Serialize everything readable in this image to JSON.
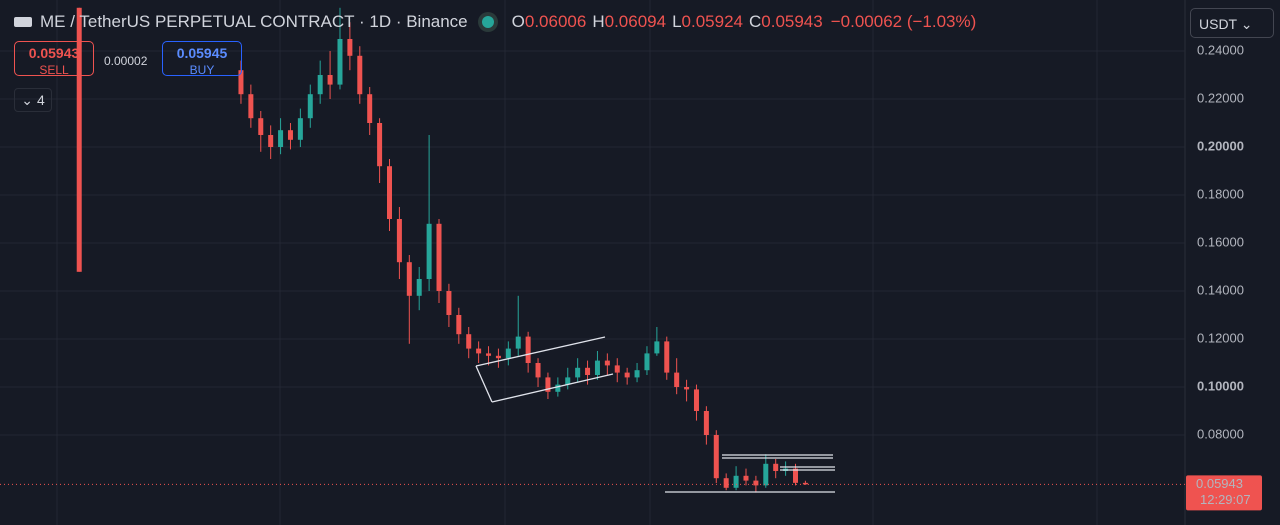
{
  "header": {
    "symbol": "ME / TetherUS PERPETUAL CONTRACT · 1D · Binance",
    "ohlc": [
      {
        "label": "O",
        "value": 0.06006
      },
      {
        "label": "H",
        "value": 0.06094
      },
      {
        "label": "L",
        "value": 0.05924
      },
      {
        "label": "C",
        "value": 0.05943
      }
    ],
    "change": "−0.00062 (−1.03%)",
    "sell": {
      "price": 0.05943,
      "label": "SELL"
    },
    "spread": 2e-05,
    "buy": {
      "price": 0.05945,
      "label": "BUY"
    },
    "indicators": 4,
    "currency": "USDT"
  },
  "chart_data": {
    "type": "candlestick",
    "x": [
      0,
      49,
      52,
      55,
      58,
      61,
      64,
      67,
      70,
      73,
      76,
      79,
      82,
      85,
      88,
      91,
      94,
      97,
      100,
      103,
      106,
      109,
      112,
      115,
      118,
      121,
      124,
      127,
      130,
      133,
      136,
      139,
      142,
      145,
      148,
      151,
      154,
      157,
      160,
      163,
      166,
      169,
      172,
      175,
      178,
      181,
      184,
      187,
      190,
      193,
      196,
      199,
      202,
      205,
      208,
      211,
      214,
      217,
      220
    ],
    "open": [
      0.258,
      0.232,
      0.222,
      0.212,
      0.205,
      0.2,
      0.207,
      0.203,
      0.212,
      0.222,
      0.23,
      0.226,
      0.245,
      0.238,
      0.222,
      0.21,
      0.192,
      0.17,
      0.152,
      0.138,
      0.145,
      0.168,
      0.14,
      0.13,
      0.122,
      0.116,
      0.114,
      0.113,
      0.112,
      0.116,
      0.121,
      0.11,
      0.104,
      0.098,
      0.101,
      0.104,
      0.108,
      0.105,
      0.111,
      0.109,
      0.106,
      0.104,
      0.107,
      0.114,
      0.119,
      0.106,
      0.1,
      0.099,
      0.09,
      0.08,
      0.062,
      0.058,
      0.063,
      0.061,
      0.059,
      0.068,
      0.065,
      0.066,
      0.06006
    ],
    "high": [
      0.258,
      0.236,
      0.226,
      0.215,
      0.209,
      0.212,
      0.21,
      0.216,
      0.226,
      0.236,
      0.24,
      0.258,
      0.252,
      0.242,
      0.225,
      0.212,
      0.195,
      0.175,
      0.155,
      0.15,
      0.205,
      0.17,
      0.143,
      0.133,
      0.125,
      0.119,
      0.117,
      0.116,
      0.119,
      0.138,
      0.123,
      0.112,
      0.106,
      0.104,
      0.108,
      0.112,
      0.111,
      0.115,
      0.114,
      0.112,
      0.108,
      0.11,
      0.117,
      0.125,
      0.121,
      0.112,
      0.103,
      0.101,
      0.092,
      0.082,
      0.064,
      0.067,
      0.066,
      0.063,
      0.072,
      0.07,
      0.069,
      0.068,
      0.06094
    ],
    "low": [
      0.148,
      0.218,
      0.208,
      0.198,
      0.195,
      0.197,
      0.199,
      0.2,
      0.208,
      0.218,
      0.22,
      0.224,
      0.232,
      0.218,
      0.205,
      0.185,
      0.165,
      0.145,
      0.118,
      0.132,
      0.14,
      0.135,
      0.125,
      0.118,
      0.112,
      0.11,
      0.109,
      0.108,
      0.109,
      0.113,
      0.106,
      0.1,
      0.095,
      0.096,
      0.099,
      0.102,
      0.101,
      0.103,
      0.105,
      0.102,
      0.101,
      0.102,
      0.105,
      0.113,
      0.103,
      0.097,
      0.094,
      0.086,
      0.076,
      0.06,
      0.057,
      0.057,
      0.059,
      0.056,
      0.058,
      0.062,
      0.063,
      0.059,
      0.05924
    ],
    "close": [
      0.148,
      0.222,
      0.212,
      0.205,
      0.2,
      0.207,
      0.203,
      0.212,
      0.222,
      0.23,
      0.226,
      0.245,
      0.238,
      0.222,
      0.21,
      0.192,
      0.17,
      0.152,
      0.138,
      0.145,
      0.168,
      0.14,
      0.13,
      0.122,
      0.116,
      0.114,
      0.113,
      0.112,
      0.116,
      0.121,
      0.11,
      0.104,
      0.098,
      0.101,
      0.104,
      0.108,
      0.105,
      0.111,
      0.109,
      0.106,
      0.104,
      0.107,
      0.114,
      0.119,
      0.106,
      0.1,
      0.099,
      0.09,
      0.08,
      0.062,
      0.058,
      0.063,
      0.061,
      0.059,
      0.068,
      0.065,
      0.066,
      0.06006,
      0.05943
    ],
    "up_color": "#26a69a",
    "down_color": "#ef5350",
    "xlim": [
      -24,
      335
    ],
    "ylim": [
      0.0425,
      0.26125
    ],
    "yticks": [
      {
        "value": 0.08,
        "label": "0.08000"
      },
      {
        "value": 0.1,
        "label": "0.10000"
      },
      {
        "value": 0.12,
        "label": "0.12000"
      },
      {
        "value": 0.14,
        "label": "0.14000"
      },
      {
        "value": 0.16,
        "label": "0.16000"
      },
      {
        "value": 0.18,
        "label": "0.18000"
      },
      {
        "value": 0.2,
        "label": "0.20000"
      },
      {
        "value": 0.22,
        "label": "0.22000"
      },
      {
        "value": 0.24,
        "label": "0.24000"
      }
    ],
    "grid": true,
    "last_price": 0.05943,
    "countdown": "12:29:07"
  }
}
